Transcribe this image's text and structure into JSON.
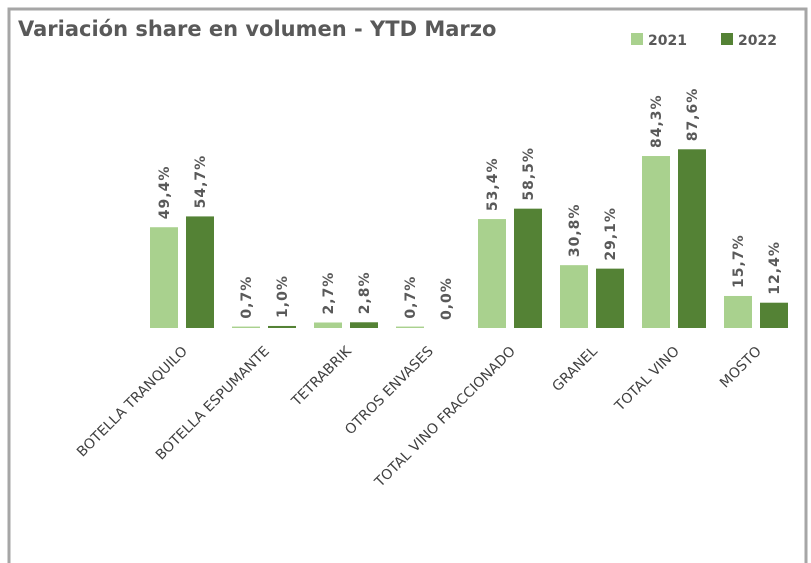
{
  "chart_data": {
    "type": "bar",
    "title": "Variación share en volumen - YTD Marzo",
    "categories": [
      "BOTELLA TRANQUILO",
      "BOTELLA ESPUMANTE",
      "TETRABRIK",
      "OTROS ENVASES",
      "TOTAL VINO FRACCIONADO",
      "GRANEL",
      "TOTAL VINO",
      "MOSTO"
    ],
    "series": [
      {
        "name": "2021",
        "color": "#a9d18e",
        "values": [
          49.4,
          0.7,
          2.7,
          0.7,
          53.4,
          30.8,
          84.3,
          15.7
        ],
        "value_labels": [
          "49,4%",
          "0,7%",
          "2,7%",
          "0,7%",
          "53,4%",
          "30,8%",
          "84,3%",
          "15,7%"
        ]
      },
      {
        "name": "2022",
        "color": "#548235",
        "values": [
          54.7,
          1.0,
          2.8,
          0.0,
          58.5,
          29.1,
          87.6,
          12.4
        ],
        "value_labels": [
          "54,7%",
          "1,0%",
          "2,8%",
          "0,0%",
          "58,5%",
          "29,1%",
          "87,6%",
          "12,4%"
        ]
      }
    ],
    "legend": "top-right"
  }
}
